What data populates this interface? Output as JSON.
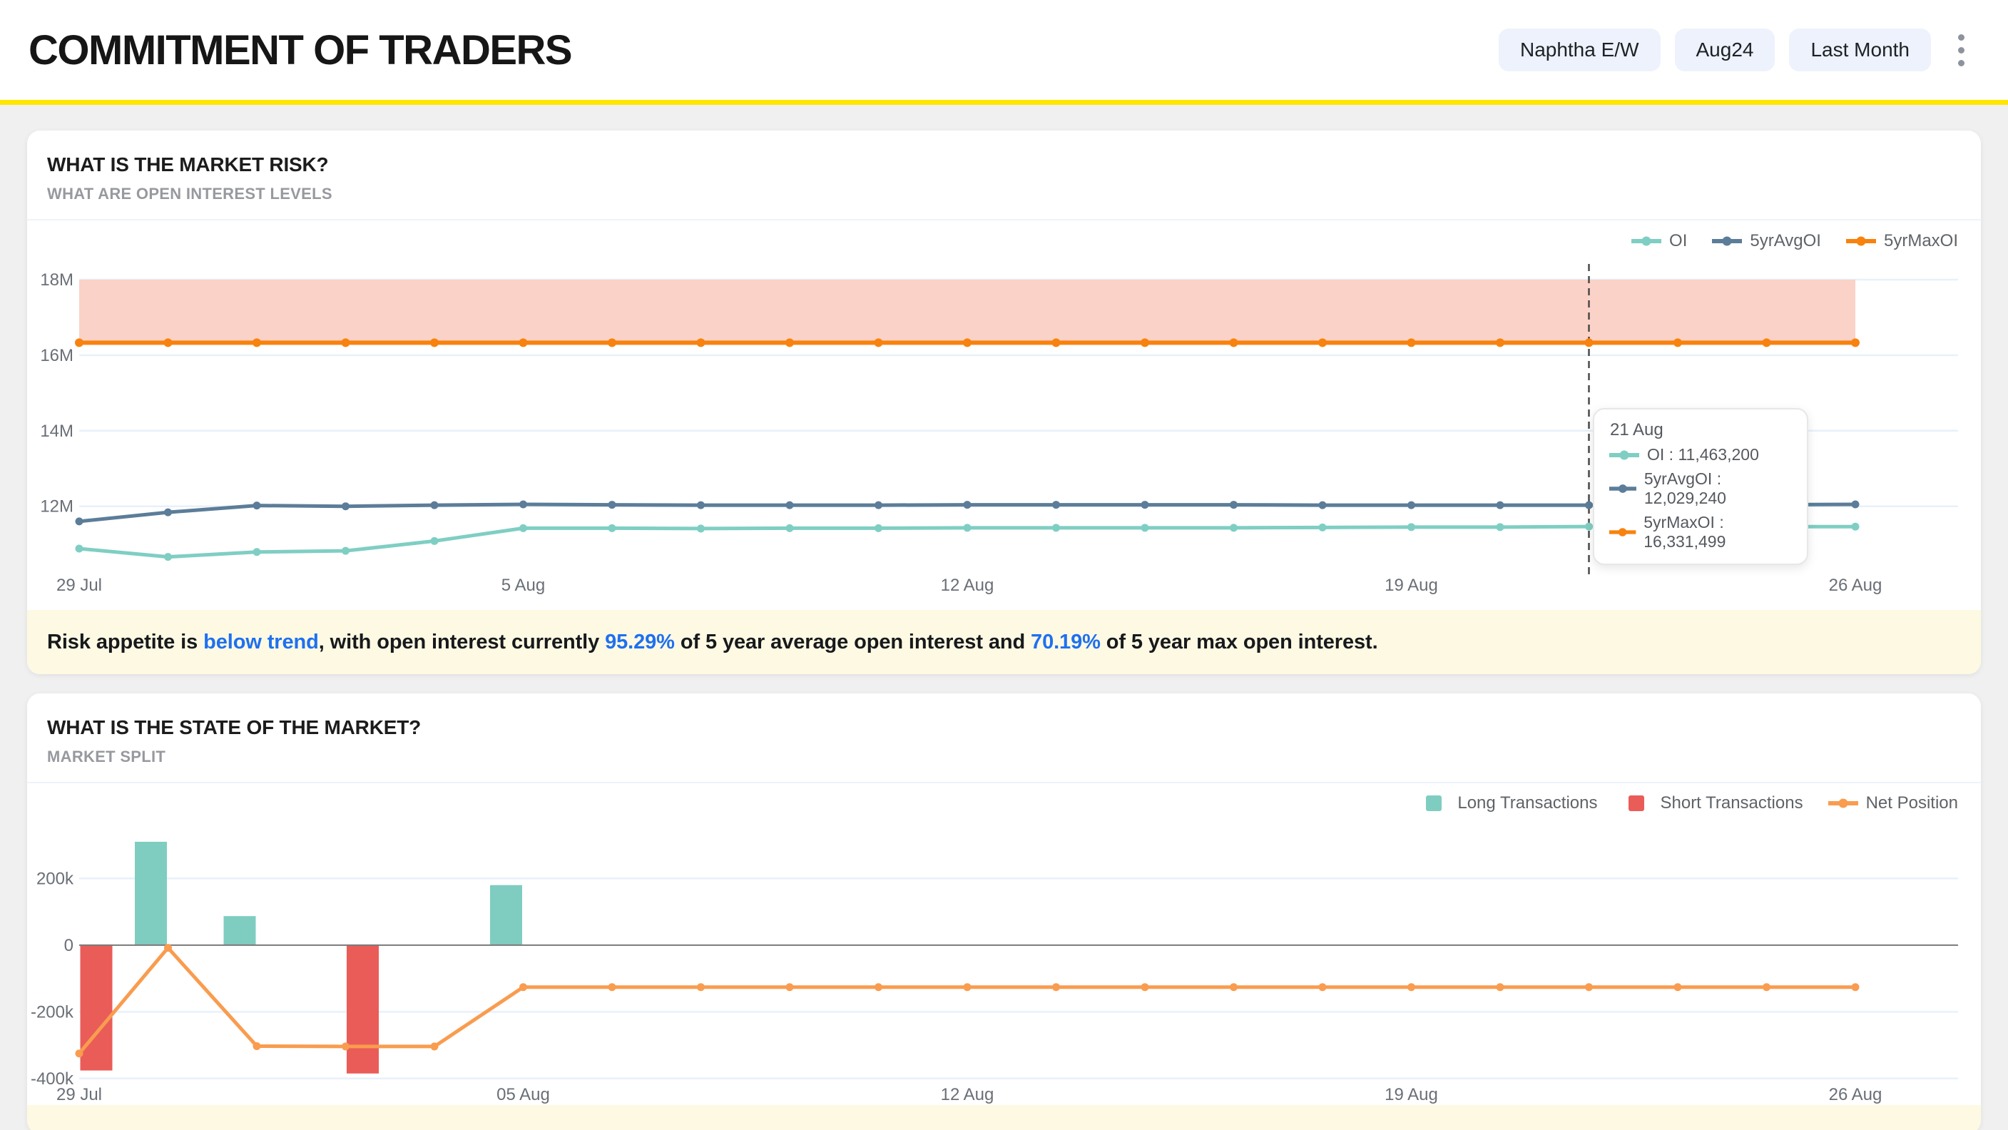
{
  "header": {
    "title": "COMMITMENT OF TRADERS",
    "filters": [
      "Naphtha E/W",
      "Aug24",
      "Last Month"
    ],
    "accent_yellow": "#FFE600"
  },
  "colors": {
    "page_bg": "#F0F0F0",
    "card_bg": "#FFFFFF",
    "grid": "#E8F1FA",
    "axis_text": "#6A6F76",
    "zero_line": "#7A7A7A",
    "crosshair": "#4A4A4A",
    "insight_bg": "#FDF9E3",
    "link_blue": "#1E70F0",
    "legend_text": "#5F6368"
  },
  "card1": {
    "title": "WHAT IS THE MARKET RISK?",
    "subtitle": "WHAT ARE OPEN INTEREST LEVELS",
    "tooltip": {
      "date": "21 Aug",
      "rows": [
        {
          "name": "OI",
          "value": "11,463,200",
          "color": "#7FCEC3"
        },
        {
          "name": "5yrAvgOI",
          "value": "12,029,240",
          "color": "#5C7D99"
        },
        {
          "name": "5yrMaxOI",
          "value": "16,331,499",
          "color": "#F8820E"
        }
      ]
    },
    "insight_segments": [
      {
        "t": "Risk appetite is ",
        "hl": false
      },
      {
        "t": "below trend",
        "hl": true
      },
      {
        "t": ", with open interest currently ",
        "hl": false
      },
      {
        "t": "95.29%",
        "hl": true
      },
      {
        "t": " of 5 year average open interest and ",
        "hl": false
      },
      {
        "t": "70.19%",
        "hl": true
      },
      {
        "t": " of 5 year max open interest.",
        "hl": false
      }
    ]
  },
  "card2": {
    "title": "WHAT IS THE STATE OF THE MARKET?",
    "subtitle": "MARKET SPLIT"
  },
  "chart_data": [
    {
      "type": "line",
      "title": "WHAT ARE OPEN INTEREST LEVELS",
      "unit": "M contracts",
      "x_dates": [
        "29 Jul",
        "30 Jul",
        "31 Jul",
        "01 Aug",
        "02 Aug",
        "05 Aug",
        "06 Aug",
        "07 Aug",
        "08 Aug",
        "09 Aug",
        "12 Aug",
        "13 Aug",
        "14 Aug",
        "15 Aug",
        "16 Aug",
        "19 Aug",
        "20 Aug",
        "21 Aug",
        "22 Aug",
        "23 Aug",
        "26 Aug"
      ],
      "x_tick_labels": [
        "29 Jul",
        "5 Aug",
        "12 Aug",
        "19 Aug",
        "26 Aug"
      ],
      "x_tick_positions": [
        0,
        5,
        10,
        15,
        20
      ],
      "ylim": [
        10.2,
        18
      ],
      "y_ticks": [
        12,
        14,
        16,
        18
      ],
      "grid": true,
      "legend_position": "top-right",
      "crosshair_index": 17,
      "band": {
        "from": 16.3315,
        "to": 18,
        "color": "#FBD2C7"
      },
      "series": [
        {
          "name": "OI",
          "color": "#7FCEC3",
          "values": [
            10.88,
            10.66,
            10.79,
            10.82,
            11.08,
            11.42,
            11.42,
            11.41,
            11.42,
            11.42,
            11.43,
            11.43,
            11.43,
            11.43,
            11.44,
            11.45,
            11.45,
            11.4632,
            11.46,
            11.46,
            11.46
          ]
        },
        {
          "name": "5yrAvgOI",
          "color": "#5C7D99",
          "values": [
            11.6,
            11.84,
            12.02,
            12.0,
            12.03,
            12.05,
            12.04,
            12.03,
            12.03,
            12.03,
            12.04,
            12.04,
            12.04,
            12.04,
            12.03,
            12.03,
            12.03,
            12.0292,
            12.03,
            12.04,
            12.05
          ]
        },
        {
          "name": "5yrMaxOI",
          "color": "#F8820E",
          "values": [
            16.3315,
            16.3315,
            16.3315,
            16.3315,
            16.3315,
            16.3315,
            16.3315,
            16.3315,
            16.3315,
            16.3315,
            16.3315,
            16.3315,
            16.3315,
            16.3315,
            16.3315,
            16.3315,
            16.3315,
            16.3315,
            16.3315,
            16.3315,
            16.3315
          ]
        }
      ]
    },
    {
      "type": "bar",
      "title": "MARKET SPLIT",
      "unit": "k contracts",
      "x_dates": [
        "29 Jul",
        "30 Jul",
        "31 Jul",
        "01 Aug",
        "02 Aug",
        "05 Aug",
        "06 Aug",
        "07 Aug",
        "08 Aug",
        "09 Aug",
        "12 Aug",
        "13 Aug",
        "14 Aug",
        "15 Aug",
        "16 Aug",
        "19 Aug",
        "20 Aug",
        "21 Aug",
        "22 Aug",
        "23 Aug",
        "26 Aug"
      ],
      "x_tick_labels": [
        "29 Jul",
        "05 Aug",
        "12 Aug",
        "19 Aug",
        "26 Aug"
      ],
      "x_tick_positions": [
        0,
        5,
        10,
        15,
        20
      ],
      "ylim": [
        -409,
        342
      ],
      "y_ticks": [
        -400,
        -200,
        0,
        200
      ],
      "grid": true,
      "legend_position": "top-right",
      "series": [
        {
          "name": "Long Transactions",
          "type": "bar",
          "marker": "square",
          "color": "#7FCDC1",
          "values": [
            0,
            310,
            87,
            0,
            0,
            180,
            0,
            0,
            0,
            0,
            0,
            0,
            0,
            0,
            0,
            0,
            0,
            0,
            0,
            0,
            0
          ]
        },
        {
          "name": "Short Transactions",
          "type": "bar",
          "marker": "square",
          "color": "#EA5C58",
          "values": [
            -376,
            0,
            0,
            -385,
            0,
            0,
            0,
            0,
            0,
            0,
            0,
            0,
            0,
            0,
            0,
            0,
            0,
            0,
            0,
            0,
            0
          ]
        },
        {
          "name": "Net Position",
          "type": "line",
          "marker": "line",
          "color": "#F99C4F",
          "values": [
            -325,
            -8,
            -303,
            -304,
            -304,
            -126,
            -126,
            -126,
            -126,
            -126,
            -126,
            -126,
            -126,
            -126,
            -126,
            -126,
            -126,
            -126,
            -126,
            -126,
            -126
          ]
        }
      ]
    }
  ]
}
